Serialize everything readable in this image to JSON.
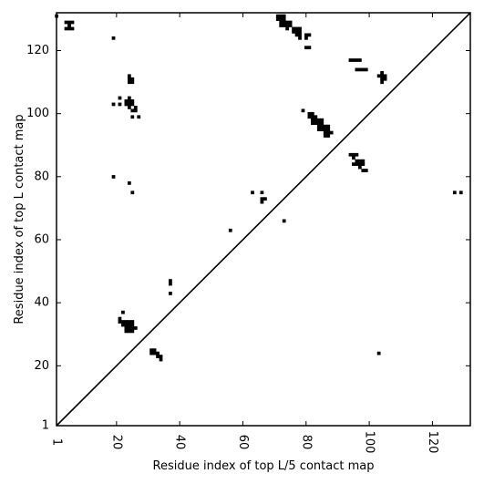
{
  "chart_data": {
    "type": "heatmap",
    "title": "",
    "xlabel": "Residue index of top L/5 contact map",
    "ylabel": "Residue index of top L contact map",
    "xlim": [
      1,
      132
    ],
    "ylim": [
      1,
      132
    ],
    "grid": false,
    "x_ticks": [
      1,
      20,
      40,
      60,
      80,
      100,
      120
    ],
    "x_tick_labels": [
      "1",
      "20",
      "40",
      "60",
      "80",
      "100",
      "120"
    ],
    "y_ticks": [
      1,
      20,
      40,
      60,
      80,
      100,
      120
    ],
    "y_tick_labels": [
      "1",
      "20",
      "40",
      "60",
      "80",
      "100",
      "120"
    ],
    "diagonal": true,
    "cell_color": "#000000",
    "cells": [
      [
        1,
        131
      ],
      [
        4,
        129
      ],
      [
        5,
        129
      ],
      [
        6,
        129
      ],
      [
        5,
        128
      ],
      [
        4,
        127
      ],
      [
        5,
        127
      ],
      [
        6,
        127
      ],
      [
        19,
        124
      ],
      [
        24,
        112
      ],
      [
        24,
        111
      ],
      [
        25,
        111
      ],
      [
        24,
        110
      ],
      [
        25,
        110
      ],
      [
        21,
        105
      ],
      [
        24,
        105
      ],
      [
        19,
        103
      ],
      [
        21,
        103
      ],
      [
        23,
        104
      ],
      [
        24,
        104
      ],
      [
        25,
        104
      ],
      [
        23,
        103
      ],
      [
        24,
        103
      ],
      [
        25,
        103
      ],
      [
        24,
        102
      ],
      [
        25,
        101
      ],
      [
        26,
        102
      ],
      [
        26,
        101
      ],
      [
        25,
        99
      ],
      [
        27,
        99
      ],
      [
        19,
        80
      ],
      [
        24,
        78
      ],
      [
        25,
        75
      ],
      [
        22,
        37
      ],
      [
        21,
        35
      ],
      [
        21,
        34
      ],
      [
        22,
        34
      ],
      [
        23,
        34
      ],
      [
        24,
        34
      ],
      [
        25,
        34
      ],
      [
        22,
        33
      ],
      [
        23,
        33
      ],
      [
        24,
        33
      ],
      [
        25,
        33
      ],
      [
        23,
        32
      ],
      [
        24,
        32
      ],
      [
        25,
        32
      ],
      [
        26,
        32
      ],
      [
        23,
        31
      ],
      [
        24,
        31
      ],
      [
        25,
        31
      ],
      [
        31,
        25
      ],
      [
        32,
        25
      ],
      [
        31,
        24
      ],
      [
        32,
        24
      ],
      [
        33,
        24
      ],
      [
        33,
        23
      ],
      [
        34,
        23
      ],
      [
        34,
        22
      ],
      [
        37,
        47
      ],
      [
        37,
        46
      ],
      [
        37,
        43
      ],
      [
        56,
        63
      ],
      [
        63,
        75
      ],
      [
        66,
        75
      ],
      [
        66,
        73
      ],
      [
        67,
        73
      ],
      [
        66,
        72
      ],
      [
        73,
        66
      ],
      [
        71,
        131
      ],
      [
        72,
        131
      ],
      [
        73,
        131
      ],
      [
        71,
        130
      ],
      [
        72,
        130
      ],
      [
        73,
        130
      ],
      [
        72,
        129
      ],
      [
        73,
        129
      ],
      [
        74,
        129
      ],
      [
        75,
        129
      ],
      [
        72,
        128
      ],
      [
        73,
        128
      ],
      [
        74,
        128
      ],
      [
        75,
        128
      ],
      [
        74,
        127
      ],
      [
        76,
        127
      ],
      [
        77,
        127
      ],
      [
        78,
        127
      ],
      [
        76,
        126
      ],
      [
        77,
        126
      ],
      [
        78,
        126
      ],
      [
        77,
        125
      ],
      [
        78,
        125
      ],
      [
        78,
        124
      ],
      [
        80,
        125
      ],
      [
        81,
        125
      ],
      [
        80,
        124
      ],
      [
        80,
        121
      ],
      [
        81,
        121
      ],
      [
        79,
        101
      ],
      [
        81,
        100
      ],
      [
        82,
        100
      ],
      [
        81,
        99
      ],
      [
        82,
        99
      ],
      [
        83,
        99
      ],
      [
        82,
        98
      ],
      [
        83,
        98
      ],
      [
        84,
        98
      ],
      [
        85,
        98
      ],
      [
        82,
        97
      ],
      [
        83,
        97
      ],
      [
        84,
        97
      ],
      [
        85,
        97
      ],
      [
        84,
        96
      ],
      [
        85,
        96
      ],
      [
        86,
        96
      ],
      [
        87,
        96
      ],
      [
        84,
        95
      ],
      [
        85,
        95
      ],
      [
        86,
        95
      ],
      [
        87,
        95
      ],
      [
        86,
        94
      ],
      [
        87,
        94
      ],
      [
        88,
        94
      ],
      [
        86,
        93
      ],
      [
        87,
        93
      ],
      [
        94,
        117
      ],
      [
        95,
        117
      ],
      [
        96,
        117
      ],
      [
        97,
        117
      ],
      [
        96,
        114
      ],
      [
        97,
        114
      ],
      [
        98,
        114
      ],
      [
        99,
        114
      ],
      [
        103,
        112
      ],
      [
        104,
        113
      ],
      [
        104,
        112
      ],
      [
        105,
        112
      ],
      [
        104,
        111
      ],
      [
        105,
        111
      ],
      [
        104,
        110
      ],
      [
        94,
        87
      ],
      [
        95,
        87
      ],
      [
        96,
        87
      ],
      [
        95,
        86
      ],
      [
        96,
        85
      ],
      [
        97,
        85
      ],
      [
        98,
        85
      ],
      [
        95,
        84
      ],
      [
        96,
        84
      ],
      [
        97,
        84
      ],
      [
        98,
        84
      ],
      [
        97,
        83
      ],
      [
        98,
        82
      ],
      [
        99,
        82
      ],
      [
        103,
        24
      ],
      [
        127,
        75
      ],
      [
        129,
        75
      ]
    ]
  }
}
